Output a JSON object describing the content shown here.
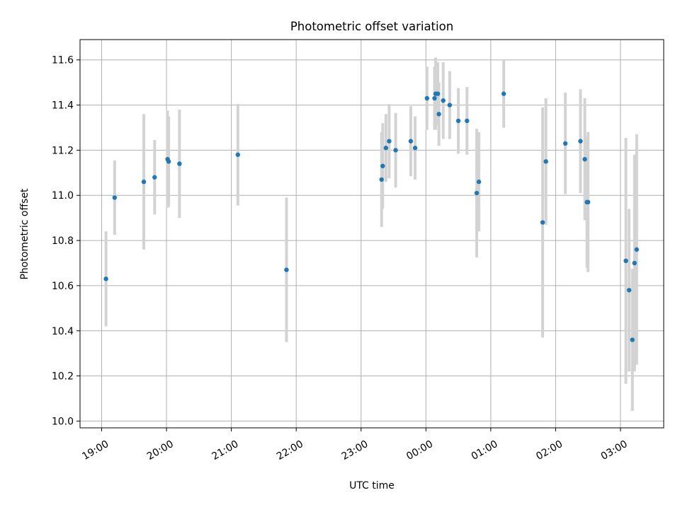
{
  "chart_data": {
    "type": "scatter",
    "title": "Photometric offset variation",
    "xlabel": "UTC time",
    "ylabel": "Photometric offset",
    "x_unit": "hours since 19:00 UTC",
    "xlim": [
      "18:40",
      "03:40"
    ],
    "ylim": [
      9.97,
      11.69
    ],
    "grid": true,
    "x_ticks": [
      "19:00",
      "20:00",
      "21:00",
      "22:00",
      "23:00",
      "00:00",
      "01:00",
      "02:00",
      "03:00"
    ],
    "y_ticks": [
      "10.0",
      "10.2",
      "10.4",
      "10.6",
      "10.8",
      "11.0",
      "11.2",
      "11.4",
      "11.6"
    ],
    "colors": {
      "point": "#1f77b4",
      "errorbar": "#d3d3d3",
      "grid": "#b0b0b0"
    },
    "points": [
      {
        "x": "19:04",
        "y": 10.63,
        "err": 0.21
      },
      {
        "x": "19:12",
        "y": 10.99,
        "err": 0.165
      },
      {
        "x": "19:39",
        "y": 11.06,
        "err": 0.3
      },
      {
        "x": "19:49",
        "y": 11.08,
        "err": 0.165
      },
      {
        "x": "20:01",
        "y": 11.16,
        "err": 0.215
      },
      {
        "x": "20:02",
        "y": 11.15,
        "err": 0.2
      },
      {
        "x": "20:12",
        "y": 11.14,
        "err": 0.24
      },
      {
        "x": "21:06",
        "y": 11.18,
        "err": 0.225
      },
      {
        "x": "21:51",
        "y": 10.67,
        "err": 0.32
      },
      {
        "x": "23:19",
        "y": 11.07,
        "err": 0.21
      },
      {
        "x": "23:20",
        "y": 11.13,
        "err": 0.19
      },
      {
        "x": "23:23",
        "y": 11.21,
        "err": 0.15
      },
      {
        "x": "23:26",
        "y": 11.24,
        "err": 0.165
      },
      {
        "x": "23:32",
        "y": 11.2,
        "err": 0.165
      },
      {
        "x": "23:46",
        "y": 11.24,
        "err": 0.155
      },
      {
        "x": "23:50",
        "y": 11.21,
        "err": 0.14
      },
      {
        "x": "00:01",
        "y": 11.43,
        "err": 0.14
      },
      {
        "x": "00:08",
        "y": 11.43,
        "err": 0.14
      },
      {
        "x": "00:09",
        "y": 11.45,
        "err": 0.16
      },
      {
        "x": "00:11",
        "y": 11.45,
        "err": 0.14
      },
      {
        "x": "00:12",
        "y": 11.36,
        "err": 0.14
      },
      {
        "x": "00:16",
        "y": 11.42,
        "err": 0.17
      },
      {
        "x": "00:22",
        "y": 11.4,
        "err": 0.15
      },
      {
        "x": "00:30",
        "y": 11.33,
        "err": 0.145
      },
      {
        "x": "00:38",
        "y": 11.33,
        "err": 0.15
      },
      {
        "x": "00:47",
        "y": 11.01,
        "err": 0.285
      },
      {
        "x": "00:49",
        "y": 11.06,
        "err": 0.22
      },
      {
        "x": "01:12",
        "y": 11.45,
        "err": 0.15
      },
      {
        "x": "01:48",
        "y": 10.88,
        "err": 0.51
      },
      {
        "x": "01:51",
        "y": 11.15,
        "err": 0.28
      },
      {
        "x": "02:09",
        "y": 11.23,
        "err": 0.225
      },
      {
        "x": "02:23",
        "y": 11.24,
        "err": 0.23
      },
      {
        "x": "02:27",
        "y": 11.16,
        "err": 0.27
      },
      {
        "x": "02:29",
        "y": 10.97,
        "err": 0.29
      },
      {
        "x": "02:30",
        "y": 10.97,
        "err": 0.31
      },
      {
        "x": "03:05",
        "y": 10.71,
        "err": 0.545
      },
      {
        "x": "03:08",
        "y": 10.58,
        "err": 0.36
      },
      {
        "x": "03:11",
        "y": 10.36,
        "err": 0.315
      },
      {
        "x": "03:13",
        "y": 10.7,
        "err": 0.48
      },
      {
        "x": "03:15",
        "y": 10.76,
        "err": 0.51
      }
    ]
  }
}
